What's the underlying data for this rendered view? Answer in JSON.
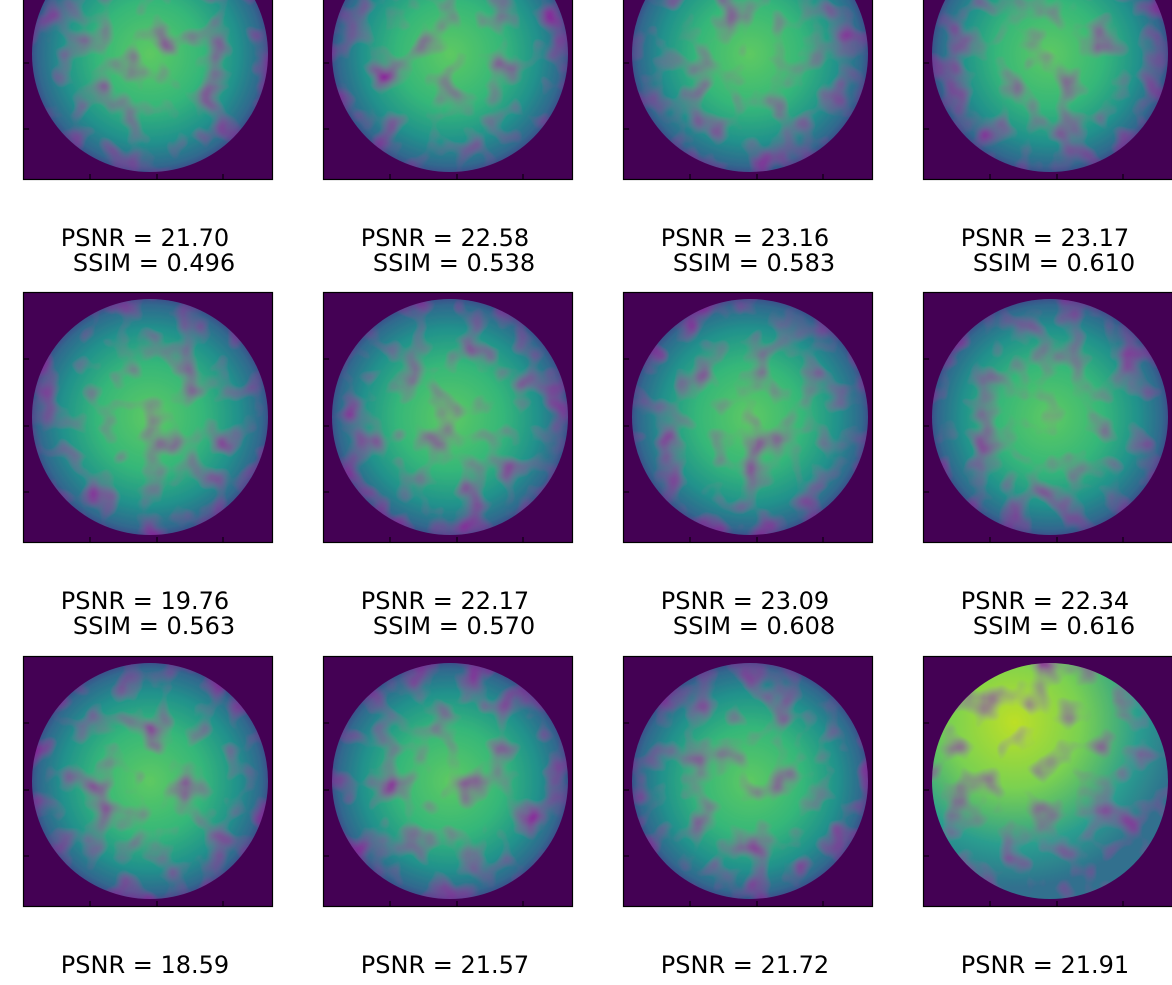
{
  "figure": {
    "title_rows": [
      [
        {
          "psnr": "PSNR = 21.70",
          "ssim": "SSIM = 0.496"
        },
        {
          "psnr": "PSNR = 22.58",
          "ssim": "SSIM = 0.538"
        },
        {
          "psnr": "PSNR = 23.16",
          "ssim": "SSIM = 0.583"
        },
        {
          "psnr": "PSNR = 23.17",
          "ssim": "SSIM = 0.610"
        }
      ],
      [
        {
          "psnr": "PSNR = 19.76",
          "ssim": "SSIM = 0.563"
        },
        {
          "psnr": "PSNR = 22.17",
          "ssim": "SSIM = 0.570"
        },
        {
          "psnr": "PSNR = 23.09",
          "ssim": "SSIM = 0.608"
        },
        {
          "psnr": "PSNR = 22.34",
          "ssim": "SSIM = 0.616"
        }
      ],
      [
        {
          "psnr": "PSNR = 18.59"
        },
        {
          "psnr": "PSNR = 21.57"
        },
        {
          "psnr": "PSNR = 21.72"
        },
        {
          "psnr": "PSNR = 21.91"
        }
      ]
    ]
  }
}
